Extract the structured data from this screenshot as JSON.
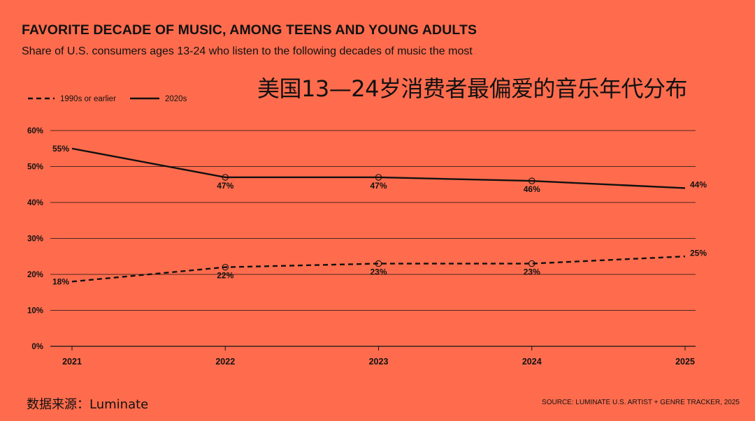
{
  "header": {
    "title": "FAVORITE DECADE OF MUSIC, AMONG TEENS AND YOUNG ADULTS",
    "subtitle": "Share of U.S. consumers ages 13-24 who listen to the following decades of music the most",
    "cn_title": "美国13—24岁消费者最偏爱的音乐年代分布"
  },
  "footer": {
    "cn_source": "数据来源：Luminate",
    "source": "SOURCE: LUMINATE U.S. ARTIST + GENRE TRACKER, 2025"
  },
  "colors": {
    "background": "#FF6C4D",
    "ink": "#111111"
  },
  "chart_data": {
    "type": "line",
    "x": [
      "2021",
      "2022",
      "2023",
      "2024",
      "2025"
    ],
    "ylim": [
      0,
      60
    ],
    "yticks": [
      "0%",
      "10%",
      "20%",
      "30%",
      "40%",
      "50%",
      "60%"
    ],
    "ytick_values": [
      0,
      10,
      20,
      30,
      40,
      50,
      60
    ],
    "grid": true,
    "legend_placement": "top-left",
    "series": [
      {
        "name": "1990s or earlier",
        "style": "dashed",
        "values": [
          18,
          22,
          23,
          23,
          25
        ],
        "labels": [
          "18%",
          "22%",
          "23%",
          "23%",
          "25%"
        ]
      },
      {
        "name": "2020s",
        "style": "solid",
        "values": [
          55,
          47,
          47,
          46,
          44
        ],
        "labels": [
          "55%",
          "47%",
          "47%",
          "46%",
          "44%"
        ]
      }
    ]
  }
}
